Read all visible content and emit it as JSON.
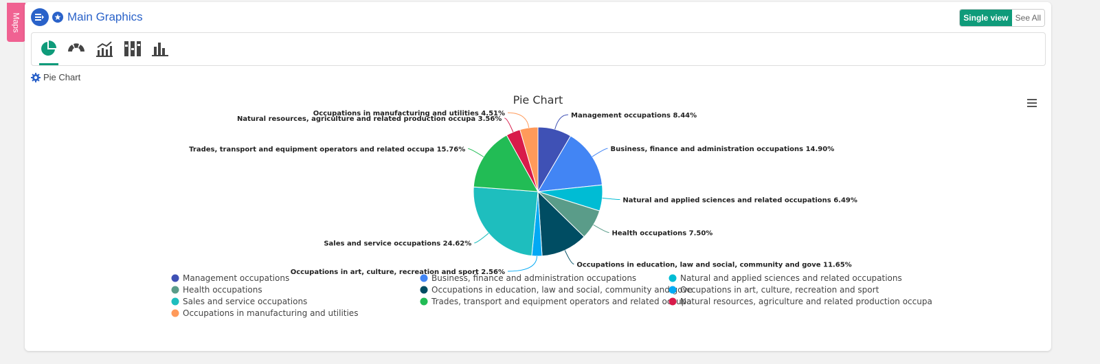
{
  "side_tab": {
    "label": "Maps"
  },
  "header": {
    "title": "Main Graphics"
  },
  "view_toggle": {
    "single": "Single view",
    "all": "See All"
  },
  "toolbar": {
    "items": [
      "pie-chart-icon",
      "semi-donut-icon",
      "line-bar-chart-icon",
      "stacked-columns-icon",
      "bar-chart-icon"
    ],
    "active": 0
  },
  "subheader": {
    "label": "Pie Chart"
  },
  "colors": {
    "accent": "#0f9b7a",
    "brand": "#2a62c9"
  },
  "chart_data": {
    "type": "pie",
    "title": "Pie Chart",
    "categories": [
      "Management occupations",
      "Business, finance and administration occupations",
      "Natural and applied sciences and related occupations",
      "Health occupations",
      "Occupations in education, law and social, community and gove",
      "Occupations in art, culture, recreation and sport",
      "Sales and service occupations",
      "Trades, transport and equipment operators and related occupa",
      "Natural resources, agriculture and related production occupa",
      "Occupations in manufacturing and utilities"
    ],
    "values": [
      8.44,
      14.9,
      6.49,
      7.5,
      11.65,
      2.56,
      24.62,
      15.76,
      3.56,
      4.51
    ],
    "unit": "%",
    "colors": [
      "#3f51b5",
      "#4285f4",
      "#00bcd4",
      "#5a9c89",
      "#004d63",
      "#03a9f4",
      "#1ebebe",
      "#22bc55",
      "#d81b4a",
      "#ff9a5a"
    ],
    "legend": "bottom"
  }
}
